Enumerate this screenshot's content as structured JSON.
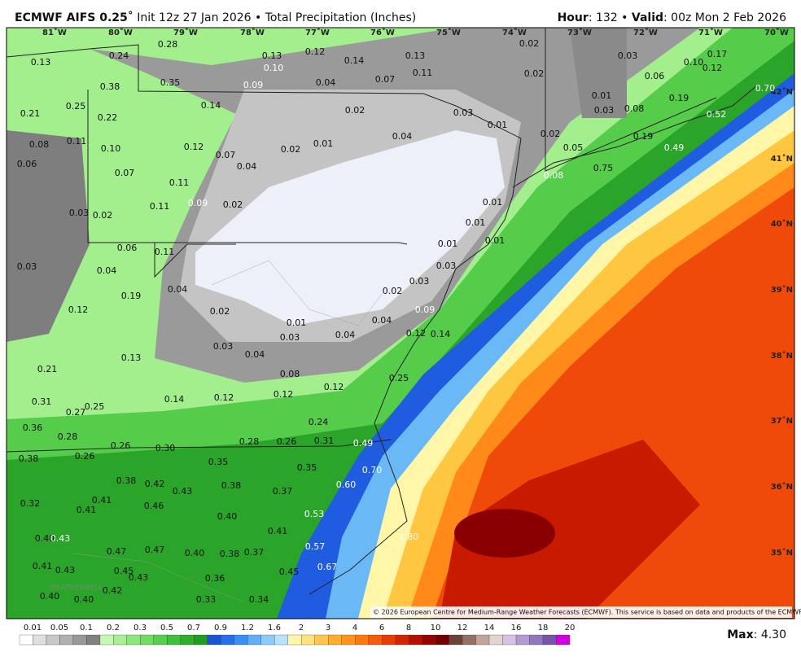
{
  "header": {
    "model": "ECMWF AIFS 0.25˚",
    "init": "Init 12z 27 Jan 2026 • Total Precipitation (Inches)",
    "hour_label": "Hour",
    "hour": ": 132 •",
    "valid_label": "Valid",
    "valid": ": 00z Mon 2 Feb 2026"
  },
  "longitudes": [
    "81˚W",
    "80˚W",
    "79˚W",
    "78˚W",
    "77˚W",
    "76˚W",
    "75˚W",
    "74˚W",
    "73˚W",
    "72˚W",
    "71˚W",
    "70˚W"
  ],
  "latitudes": [
    "42˚N",
    "41˚N",
    "40˚N",
    "39˚N",
    "38˚N",
    "37˚N",
    "36˚N",
    "35˚N"
  ],
  "value_labels": [
    "0.24",
    "0.28",
    "0.13",
    "0.13",
    "0.10",
    "0.12",
    "0.14",
    "0.13",
    "0.11",
    "0.02",
    "0.03",
    "0.02",
    "0.06",
    "0.10",
    "0.17",
    "0.12",
    "0.70",
    "0.38",
    "0.35",
    "0.09",
    "0.04",
    "0.07",
    "0.25",
    "0.22",
    "0.21",
    "0.14",
    "0.02",
    "0.03",
    "0.01",
    "0.03",
    "0.08",
    "0.19",
    "0.52",
    "0.01",
    "0.02",
    "0.04",
    "0.19",
    "0.49",
    "0.11",
    "0.08",
    "0.10",
    "0.12",
    "0.07",
    "0.02",
    "0.01",
    "0.05",
    "0.06",
    "0.07",
    "0.04",
    "0.08",
    "0.75",
    "0.11",
    "0.09",
    "0.02",
    "0.01",
    "0.11",
    "0.03",
    "0.02",
    "0.01",
    "0.01",
    "0.06",
    "0.11",
    "0.01",
    "0.03",
    "0.04",
    "0.03",
    "0.03",
    "0.04",
    "0.19",
    "0.02",
    "0.12",
    "0.02",
    "0.09",
    "0.04",
    "0.01",
    "0.04",
    "0.03",
    "0.12",
    "0.14",
    "0.03",
    "0.04",
    "0.13",
    "0.21",
    "0.08",
    "0.25",
    "0.12",
    "0.14",
    "0.12",
    "0.12",
    "0.31",
    "0.27",
    "0.25",
    "0.24",
    "0.36",
    "0.28",
    "0.26",
    "0.30",
    "0.28",
    "0.26",
    "0.31",
    "0.49",
    "0.26",
    "0.38",
    "0.35",
    "0.35",
    "0.70",
    "0.38",
    "0.42",
    "0.43",
    "0.38",
    "0.37",
    "0.60",
    "0.41",
    "0.32",
    "0.41",
    "0.46",
    "0.40",
    "0.53",
    "0.41",
    "0.40",
    "0.43",
    "0.47",
    "0.47",
    "0.40",
    "0.38",
    "0.37",
    "0.57",
    "1.80",
    "0.41",
    "0.43",
    "0.45",
    "0.43",
    "0.45",
    "0.67",
    "0.36",
    "0.42",
    "0.40",
    "0.40",
    "0.33",
    "0.34"
  ],
  "colorbar": {
    "labels": [
      "0.01",
      "0.05",
      "0.1",
      "0.2",
      "0.3",
      "0.5",
      "0.7",
      "0.9",
      "1.2",
      "1.6",
      "2",
      "3",
      "4",
      "6",
      "8",
      "10",
      "12",
      "14",
      "16",
      "18",
      "20"
    ],
    "colors": [
      "#ffffff",
      "#e0e0e0",
      "#c8c8c8",
      "#b0b0b0",
      "#989898",
      "#808080",
      "#c6f7b4",
      "#a8ef94",
      "#8ce67a",
      "#70dc62",
      "#56d04c",
      "#3ec23a",
      "#2cb02a",
      "#1f9e1f",
      "#1a54d4",
      "#2670ea",
      "#3a8ff4",
      "#62aef7",
      "#8ccaf9",
      "#b8e2fb",
      "#fff6a8",
      "#ffe27a",
      "#ffc84c",
      "#ffad2a",
      "#ff9418",
      "#ff780e",
      "#f85a08",
      "#ea3c04",
      "#d42400",
      "#b81000",
      "#960400",
      "#720000",
      "#6e4238",
      "#967064",
      "#c2a49c",
      "#e2d4d0",
      "#d6c2e4",
      "#b49ad2",
      "#9276bc",
      "#7a52a8",
      "#d200e0"
    ]
  },
  "credit": "© 2026 European Centre for Medium-Range Weather Forecasts (ECMWF). This service is based on data and products of the ECMWF.",
  "logo": "WEATHERBELL",
  "footer": {
    "max_label": "Max",
    "max": ": 4.30"
  }
}
